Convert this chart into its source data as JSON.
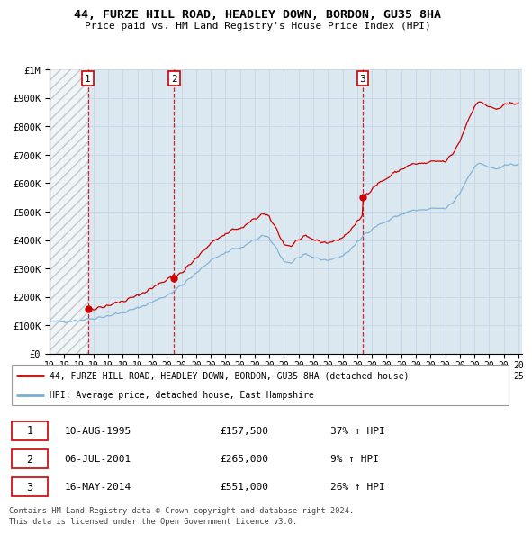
{
  "title": "44, FURZE HILL ROAD, HEADLEY DOWN, BORDON, GU35 8HA",
  "subtitle": "Price paid vs. HM Land Registry's House Price Index (HPI)",
  "legend_line1": "44, FURZE HILL ROAD, HEADLEY DOWN, BORDON, GU35 8HA (detached house)",
  "legend_line2": "HPI: Average price, detached house, East Hampshire",
  "footer1": "Contains HM Land Registry data © Crown copyright and database right 2024.",
  "footer2": "This data is licensed under the Open Government Licence v3.0.",
  "sales": [
    {
      "num": 1,
      "date": "10-AUG-1995",
      "price": 157500,
      "pct": "37% ↑ HPI",
      "year": 1995.614
    },
    {
      "num": 2,
      "date": "06-JUL-2001",
      "price": 265000,
      "pct": "9% ↑ HPI",
      "year": 2001.506
    },
    {
      "num": 3,
      "date": "16-MAY-2014",
      "price": 551000,
      "pct": "26% ↑ HPI",
      "year": 2014.37
    }
  ],
  "hpi_color": "#7aadd4",
  "price_color": "#cc0000",
  "grid_color": "#c8d8e8",
  "bg_color": "#dce8f0",
  "xmin": 1993.0,
  "xmax": 2025.25,
  "ymin": 0,
  "ymax": 1000000,
  "yticks": [
    0,
    100000,
    200000,
    300000,
    400000,
    500000,
    600000,
    700000,
    800000,
    900000,
    1000000
  ],
  "ytick_labels": [
    "£0",
    "£100K",
    "£200K",
    "£300K",
    "£400K",
    "£500K",
    "£600K",
    "£700K",
    "£800K",
    "£900K",
    "£1M"
  ],
  "xticks": [
    1993,
    1994,
    1995,
    1996,
    1997,
    1998,
    1999,
    2000,
    2001,
    2002,
    2003,
    2004,
    2005,
    2006,
    2007,
    2008,
    2009,
    2010,
    2011,
    2012,
    2013,
    2014,
    2015,
    2016,
    2017,
    2018,
    2019,
    2020,
    2021,
    2022,
    2023,
    2024,
    2025
  ]
}
